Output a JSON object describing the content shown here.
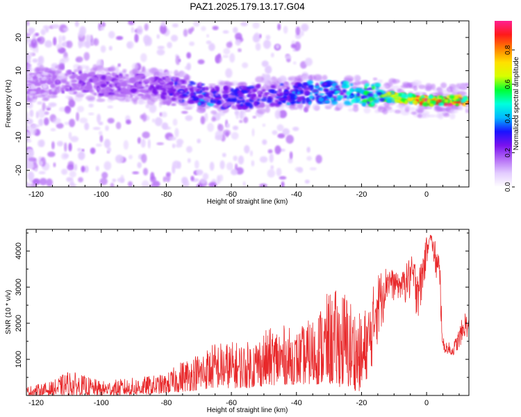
{
  "title": "PAZ1.2025.179.13.17.G04",
  "colors": {
    "snr_line": "#e8282a",
    "spectrogram_palette": [
      "#ffffff",
      "#e3ccff",
      "#b46cf5",
      "#7a12ee",
      "#1a12ff",
      "#00b8ff",
      "#00ffdd",
      "#00ff33",
      "#d8ff00",
      "#ffe000",
      "#ff8000",
      "#ff1a1a",
      "#ff2090"
    ]
  },
  "chart_data": [
    {
      "type": "heatmap",
      "title": "PAZ1.2025.179.13.17.G04",
      "xlabel": "Height of straight line (km)",
      "ylabel": "Frequency (Hz)",
      "xlim": [
        -123,
        13
      ],
      "ylim": [
        -25,
        25
      ],
      "xticks": [
        -120,
        -100,
        -80,
        -60,
        -40,
        -20,
        0
      ],
      "yticks": [
        -20,
        -10,
        0,
        10,
        20
      ],
      "colorbar": {
        "label": "Normalized spectral amplitude",
        "range": [
          0,
          0.97
        ],
        "ticks": [
          "0.0",
          "0.2",
          "0.4",
          "0.6",
          "0.8"
        ]
      },
      "grid": false,
      "ridge": {
        "description_points_x": [
          -121,
          -110,
          -100,
          -90,
          -80,
          -70,
          -60,
          -50,
          -40,
          -30,
          -20,
          -10,
          0,
          12
        ],
        "center_frequency": [
          6,
          6.5,
          6,
          5.5,
          5,
          3,
          1.5,
          2.5,
          3.5,
          3.5,
          3,
          2,
          1,
          1
        ],
        "peak_amplitude": [
          0.15,
          0.2,
          0.2,
          0.2,
          0.25,
          0.35,
          0.3,
          0.3,
          0.35,
          0.4,
          0.5,
          0.7,
          0.85,
          0.85
        ]
      }
    },
    {
      "type": "line",
      "xlabel": "Height of straight line (km)",
      "ylabel": "SNR (10 * v/v)",
      "xlim": [
        -123,
        13
      ],
      "ylim": [
        0,
        4600
      ],
      "xticks": [
        -120,
        -100,
        -80,
        -60,
        -40,
        -20,
        0
      ],
      "yticks": [
        1000,
        2000,
        3000,
        4000
      ],
      "grid": false,
      "series": [
        {
          "x": [
            -123,
            -115,
            -110,
            -100,
            -90,
            -80,
            -75,
            -70,
            -65,
            -60,
            -55,
            -50,
            -45,
            -40,
            -35,
            -30,
            -25,
            -20,
            -15,
            -12,
            -8,
            -5,
            -2,
            0,
            1,
            3,
            4,
            5,
            8,
            10,
            12,
            13
          ],
          "envelope_upper": [
            250,
            400,
            700,
            400,
            500,
            600,
            1000,
            1200,
            1500,
            1500,
            1500,
            1800,
            2000,
            1800,
            2200,
            2900,
            3000,
            2200,
            3400,
            3600,
            3300,
            3900,
            3600,
            4400,
            4500,
            4300,
            4100,
            1600,
            1400,
            1900,
            2400,
            2200
          ],
          "envelope_lower": [
            0,
            0,
            0,
            0,
            0,
            50,
            100,
            150,
            200,
            200,
            200,
            250,
            300,
            300,
            300,
            300,
            200,
            100,
            1200,
            2500,
            2600,
            2300,
            2000,
            3500,
            4300,
            3200,
            2700,
            1200,
            1100,
            1300,
            1700,
            1500
          ]
        }
      ]
    }
  ]
}
